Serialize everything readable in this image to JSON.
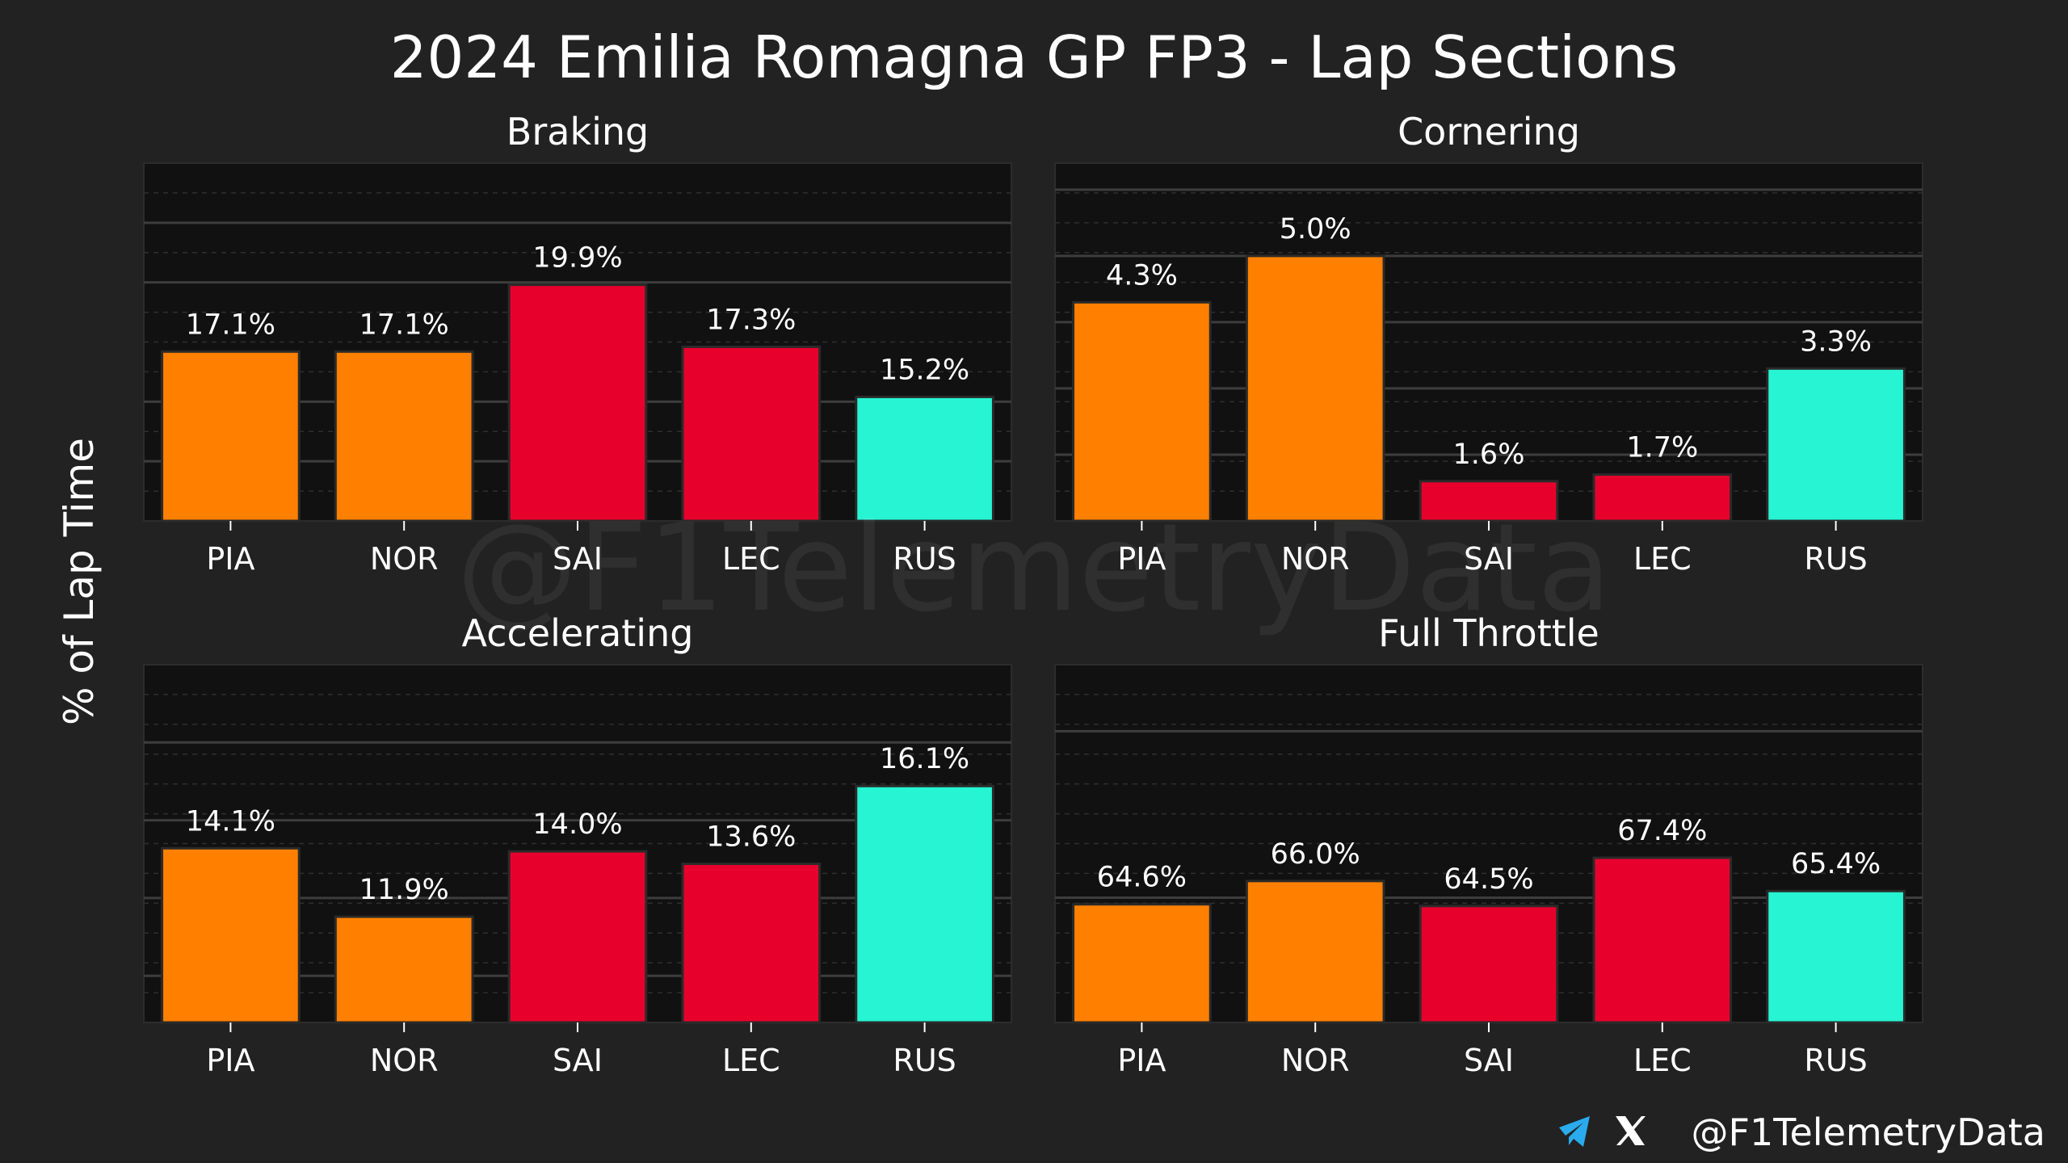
{
  "title": "2024 Emilia Romagna GP FP3 - Lap Sections",
  "ylabel": "% of Lap Time",
  "watermark": "@F1TelemetryData",
  "footer": {
    "handle": "@F1TelemetryData",
    "icons": [
      "telegram-icon",
      "x-icon"
    ]
  },
  "colors": {
    "PIA": "#FF8000",
    "NOR": "#FF8000",
    "SAI": "#E8002D",
    "LEC": "#E8002D",
    "RUS": "#27F4D2",
    "background": "#222222",
    "panel": "#111111"
  },
  "chart_data": [
    {
      "type": "bar",
      "title": "Braking",
      "categories": [
        "PIA",
        "NOR",
        "SAI",
        "LEC",
        "RUS"
      ],
      "values": [
        17.1,
        17.1,
        19.9,
        17.3,
        15.2
      ],
      "value_labels": [
        "17.1%",
        "17.1%",
        "19.9%",
        "17.3%",
        "15.2%"
      ],
      "ylim": [
        10,
        25
      ],
      "major_ticks": [
        10,
        12.5,
        15,
        20,
        22.5,
        25
      ],
      "grid": true
    },
    {
      "type": "bar",
      "title": "Cornering",
      "categories": [
        "PIA",
        "NOR",
        "SAI",
        "LEC",
        "RUS"
      ],
      "values": [
        4.3,
        5.0,
        1.6,
        1.7,
        3.3
      ],
      "value_labels": [
        "4.3%",
        "5.0%",
        "1.6%",
        "1.7%",
        "3.3%"
      ],
      "ylim": [
        1,
        6.4
      ],
      "major_ticks": [
        1,
        2,
        3,
        4,
        5,
        6
      ],
      "grid": true
    },
    {
      "type": "bar",
      "title": "Accelerating",
      "categories": [
        "PIA",
        "NOR",
        "SAI",
        "LEC",
        "RUS"
      ],
      "values": [
        14.1,
        11.9,
        14.0,
        13.6,
        16.1
      ],
      "value_labels": [
        "14.1%",
        "11.9%",
        "14.0%",
        "13.6%",
        "16.1%"
      ],
      "ylim": [
        8.5,
        20
      ],
      "major_ticks": [
        10,
        12.5,
        15,
        17.5
      ],
      "grid": true
    },
    {
      "type": "bar",
      "title": "Full Throttle",
      "categories": [
        "PIA",
        "NOR",
        "SAI",
        "LEC",
        "RUS"
      ],
      "values": [
        64.6,
        66.0,
        64.5,
        67.4,
        65.4
      ],
      "value_labels": [
        "64.6%",
        "66.0%",
        "64.5%",
        "67.4%",
        "65.4%"
      ],
      "ylim": [
        57.5,
        79
      ],
      "major_ticks": [
        65,
        75
      ],
      "grid": true
    }
  ]
}
